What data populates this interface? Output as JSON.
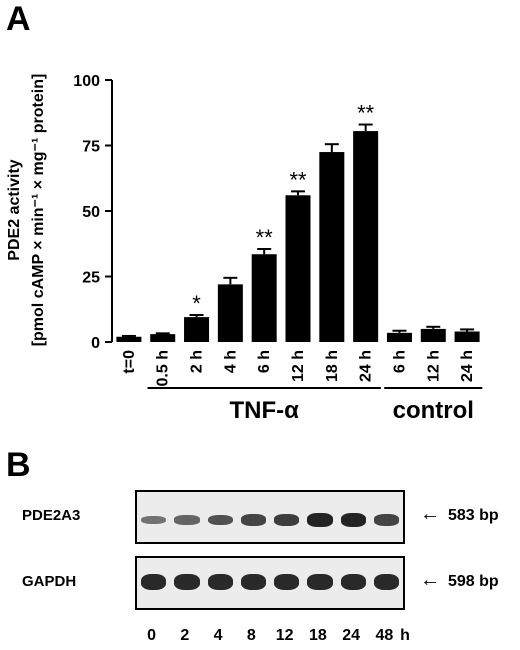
{
  "panel_a_letter": "A",
  "panel_b_letter": "B",
  "chart_data": {
    "type": "bar",
    "ylabel_line1": "PDE2 activity",
    "ylabel_line2": "[pmol cAMP × min⁻¹ × mg⁻¹ protein]",
    "ylim": [
      0,
      100
    ],
    "yticks": [
      0,
      25,
      50,
      75,
      100
    ],
    "categories": [
      "t=0",
      "0.5 h",
      "2 h",
      "4 h",
      "6 h",
      "12 h",
      "18 h",
      "24 h",
      "6 h",
      "12 h",
      "24 h"
    ],
    "values": [
      2.0,
      3.0,
      9.5,
      22.0,
      33.5,
      56.0,
      72.5,
      80.5,
      3.5,
      5.0,
      4.0
    ],
    "errors": [
      0.3,
      0.3,
      0.8,
      2.5,
      2.0,
      1.5,
      3.0,
      2.5,
      0.8,
      0.8,
      0.8
    ],
    "significance": [
      "",
      "",
      "*",
      "",
      "**",
      "**",
      "",
      "**",
      "",
      "",
      ""
    ],
    "groups": [
      {
        "label": "TNF-α",
        "start": 1,
        "end": 7
      },
      {
        "label": "control",
        "start": 8,
        "end": 10
      }
    ],
    "bar_color": "#000000"
  },
  "gel": {
    "rows": [
      {
        "label": "PDE2A3",
        "size": "583 bp",
        "intensities": [
          0.35,
          0.45,
          0.6,
          0.7,
          0.75,
          0.95,
          0.95,
          0.7
        ]
      },
      {
        "label": "GAPDH",
        "size": "598 bp",
        "intensities": [
          0.9,
          0.9,
          0.9,
          0.9,
          0.9,
          0.9,
          0.9,
          0.9
        ]
      }
    ],
    "lanes": [
      "0",
      "2",
      "4",
      "8",
      "12",
      "18",
      "24",
      "48"
    ],
    "lane_unit": "h"
  }
}
